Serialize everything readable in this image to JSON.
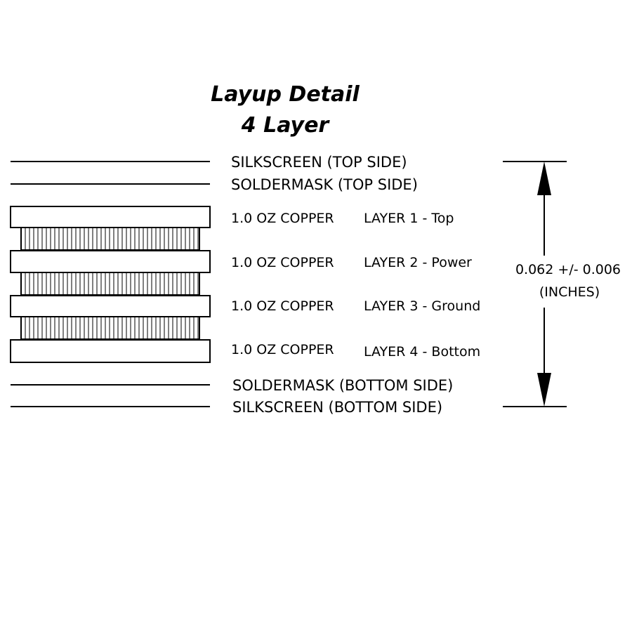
{
  "title": {
    "line1": "Layup Detail",
    "line2": "4 Layer"
  },
  "surface_layers": {
    "silk_top": "SILKSCREEN (TOP SIDE)",
    "mask_top": "SOLDERMASK (TOP SIDE)",
    "mask_bottom": "SOLDERMASK (BOTTOM SIDE)",
    "silk_bottom": "SILKSCREEN (BOTTOM SIDE)"
  },
  "copper_layers": [
    {
      "weight": "1.0 OZ COPPER",
      "name": "LAYER 1 - Top"
    },
    {
      "weight": "1.0 OZ COPPER",
      "name": "LAYER 2 - Power"
    },
    {
      "weight": "1.0 OZ COPPER",
      "name": "LAYER 3 - Ground"
    },
    {
      "weight": "1.0 OZ COPPER",
      "name": "LAYER 4 - Bottom"
    }
  ],
  "thickness": {
    "value": "0.062 +/- 0.006",
    "unit": "(INCHES)"
  }
}
